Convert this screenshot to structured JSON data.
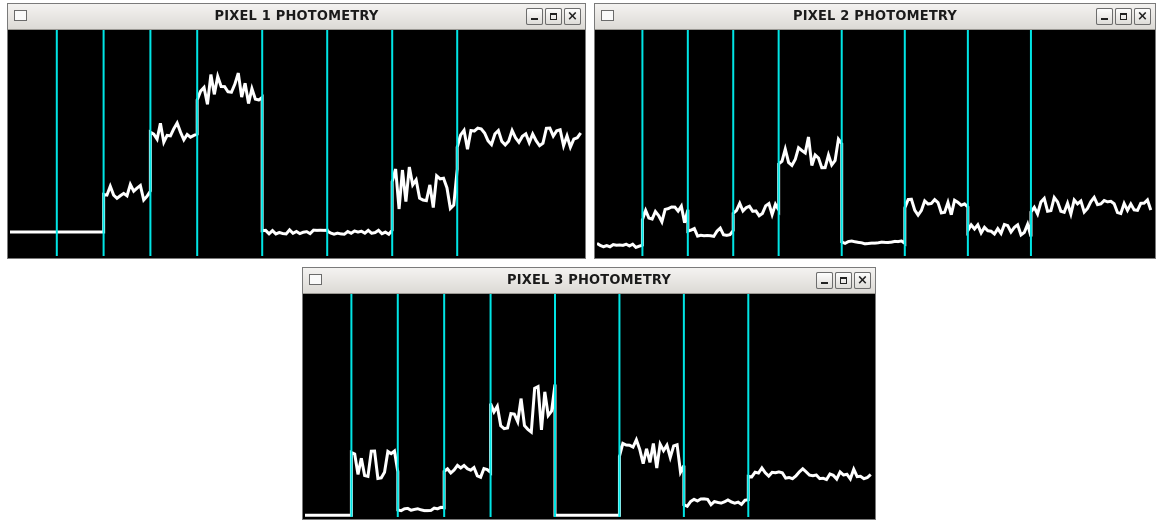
{
  "windows": [
    {
      "title": "PIXEL 1 PHOTOMETRY",
      "close_glyph": "×"
    },
    {
      "title": "PIXEL 2 PHOTOMETRY",
      "close_glyph": "×"
    },
    {
      "title": "PIXEL 3 PHOTOMETRY",
      "close_glyph": "×"
    }
  ],
  "colors": {
    "divider": "#00e5e5",
    "trace": "#ffffff",
    "plot_bg": "#000000"
  },
  "chart_data": [
    {
      "type": "line",
      "series_segments": [
        {
          "level": 0.1,
          "amp": 0.0
        },
        {
          "level": 0.1,
          "amp": 0.0
        },
        {
          "level": 0.28,
          "amp": 0.04
        },
        {
          "level": 0.55,
          "amp": 0.05
        },
        {
          "level": 0.73,
          "amp": 0.1
        },
        {
          "level": 0.1,
          "amp": 0.01
        },
        {
          "level": 0.1,
          "amp": 0.01
        },
        {
          "level": 0.3,
          "amp": 0.1
        },
        {
          "level": 0.52,
          "amp": 0.05
        }
      ]
    },
    {
      "type": "line",
      "series_segments": [
        {
          "level": 0.04,
          "amp": 0.01
        },
        {
          "level": 0.18,
          "amp": 0.04
        },
        {
          "level": 0.1,
          "amp": 0.02
        },
        {
          "level": 0.2,
          "amp": 0.03
        },
        {
          "level": 0.46,
          "amp": 0.07
        },
        {
          "level": 0.05,
          "amp": 0.01
        },
        {
          "level": 0.21,
          "amp": 0.04
        },
        {
          "level": 0.11,
          "amp": 0.03
        },
        {
          "level": 0.22,
          "amp": 0.04
        }
      ]
    },
    {
      "type": "line",
      "series_segments": [
        {
          "level": 0.0,
          "amp": 0.0
        },
        {
          "level": 0.23,
          "amp": 0.07
        },
        {
          "level": 0.03,
          "amp": 0.01
        },
        {
          "level": 0.2,
          "amp": 0.03
        },
        {
          "level": 0.5,
          "amp": 0.12
        },
        {
          "level": 0.0,
          "amp": 0.0
        },
        {
          "level": 0.27,
          "amp": 0.08
        },
        {
          "level": 0.06,
          "amp": 0.02
        },
        {
          "level": 0.19,
          "amp": 0.03
        }
      ]
    }
  ]
}
